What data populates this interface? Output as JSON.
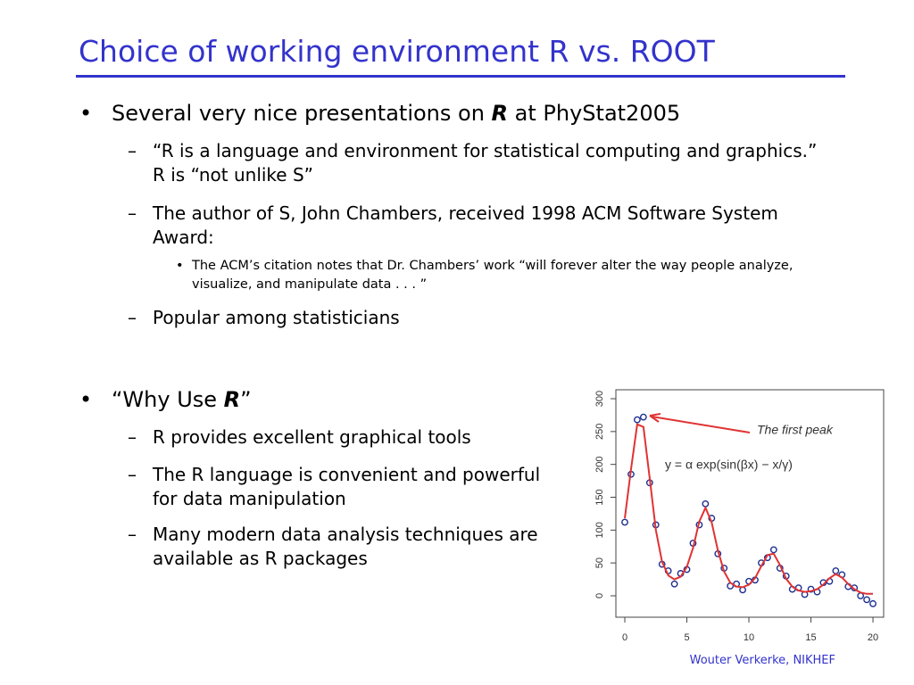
{
  "title": "Choice of working environment R vs. ROOT",
  "bullets": [
    {
      "level": 1,
      "parts": [
        "Several very nice presentations on ",
        {
          "em": "R"
        },
        " at PhyStat2005"
      ]
    },
    {
      "level": 2,
      "parts": [
        "“R is a language and environment for statistical computing and graphics.” R is “not unlike S”"
      ]
    },
    {
      "level": 2,
      "parts": [
        "The author of S, John Chambers, received 1998 ACM Software System Award:"
      ]
    },
    {
      "level": 3,
      "parts": [
        "The ACM’s citation notes that Dr. Chambers’ work “will forever alter the way people analyze, visualize, and manipulate data . . . ”"
      ]
    },
    {
      "level": 2,
      "parts": [
        "Popular among statisticians"
      ]
    },
    {
      "level": 1,
      "parts": [
        "“Why Use ",
        {
          "em": "R"
        },
        "”"
      ]
    },
    {
      "level": 2,
      "parts": [
        "R provides excellent graphical tools"
      ]
    },
    {
      "level": 2,
      "parts": [
        "The R language is convenient and powerful for data manipulation"
      ]
    },
    {
      "level": 2,
      "parts": [
        "Many modern data analysis techniques are available as R packages"
      ]
    }
  ],
  "footer": "Wouter Verkerke, NIKHEF",
  "chart_data": {
    "type": "scatter",
    "x": [
      0,
      0.5,
      1,
      1.5,
      2,
      2.5,
      3,
      3.5,
      4,
      4.5,
      5,
      5.5,
      6,
      6.5,
      7,
      7.5,
      8,
      8.5,
      9,
      9.5,
      10,
      10.5,
      11,
      11.5,
      12,
      12.5,
      13,
      13.5,
      14,
      14.5,
      15,
      15.5,
      16,
      16.5,
      17,
      17.5,
      18,
      18.5,
      19,
      19.5,
      20
    ],
    "series": [
      {
        "type": "scatter",
        "color": "#1c2f8f",
        "values": [
          112,
          185,
          268,
          272,
          172,
          108,
          48,
          38,
          18,
          34,
          40,
          80,
          108,
          140,
          118,
          64,
          42,
          15,
          18,
          9,
          22,
          24,
          50,
          58,
          70,
          42,
          30,
          10,
          12,
          2,
          10,
          6,
          20,
          22,
          38,
          32,
          14,
          12,
          0,
          -6,
          -12
        ]
      },
      {
        "type": "line",
        "color": "#e03333",
        "values": [
          118,
          193,
          261,
          257,
          180,
          100,
          52,
          31,
          25,
          29,
          44,
          73,
          113,
          134,
          112,
          69,
          37,
          20,
          14,
          13,
          17,
          27,
          45,
          62,
          64,
          47,
          26,
          14,
          8,
          6,
          7,
          10,
          17,
          27,
          33,
          28,
          18,
          10,
          5,
          3,
          3
        ]
      }
    ],
    "annotations": [
      {
        "text": "The first peak",
        "color": "#3344cc"
      },
      {
        "text": "y = α  exp(sin(βx) − x/γ)",
        "color": "#2e8b2e"
      }
    ],
    "xlim": [
      -0.72,
      20.86
    ],
    "ylim": [
      -32.6,
      313.6
    ],
    "xticks": [
      0,
      5,
      10,
      15,
      20
    ],
    "yticks": [
      0,
      50,
      100,
      150,
      200,
      250,
      300
    ]
  }
}
